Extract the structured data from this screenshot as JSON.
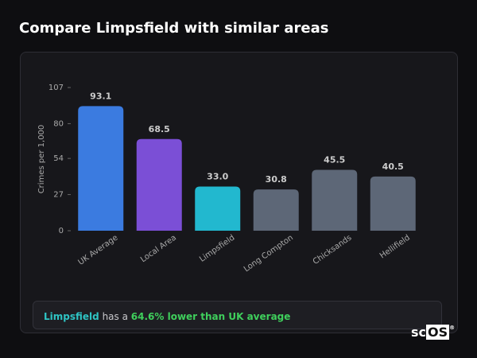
{
  "header": {
    "title": "Compare Limpsfield with similar areas"
  },
  "chart_data": {
    "type": "bar",
    "y_label": "Crimes per 1,000",
    "categories": [
      "UK Average",
      "Local Area",
      "Limpsfield",
      "Long Compton",
      "Chicksands",
      "Hellifield"
    ],
    "values": [
      93.1,
      68.5,
      33.0,
      30.8,
      45.5,
      40.5
    ],
    "value_labels": [
      "93.1",
      "68.5",
      "33.0",
      "30.8",
      "45.5",
      "40.5"
    ],
    "colors": [
      "#3b7be0",
      "#7b4fd6",
      "#22b8cf",
      "#5d6777",
      "#5d6777",
      "#5d6777"
    ],
    "ylim": [
      0,
      107
    ],
    "yticks": [
      0,
      27,
      54,
      80,
      107
    ],
    "grid": false
  },
  "footer": {
    "area": "Limpsfield",
    "middle": "has a",
    "comparison": "64.6% lower than UK average"
  },
  "brand": {
    "prefix": "sc",
    "boxed": "OS",
    "mark": "®"
  }
}
